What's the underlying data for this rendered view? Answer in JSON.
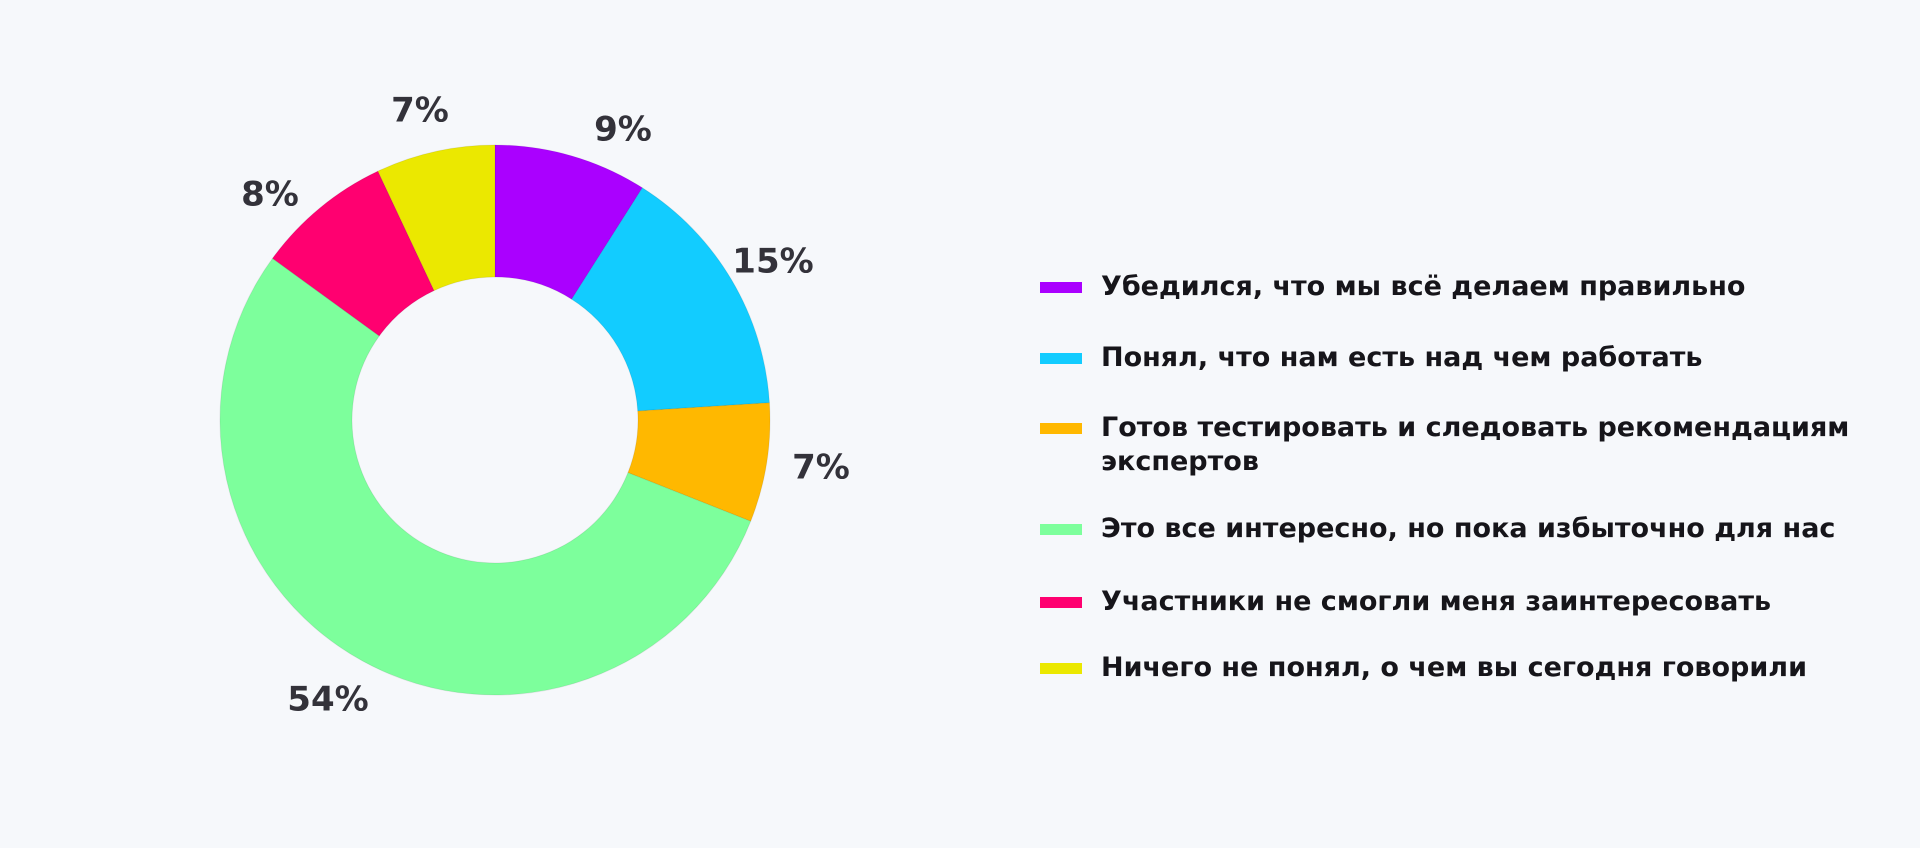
{
  "chart_data": {
    "type": "pie",
    "style": "donut",
    "legend_position": "right",
    "slices": [
      {
        "label": "Убедился, что мы всё делаем правильно",
        "value": 9,
        "value_label": "9%",
        "color": "#aa00ff"
      },
      {
        "label": "Понял, что нам есть над чем работать",
        "value": 15,
        "value_label": "15%",
        "color": "#12ccff"
      },
      {
        "label": "Готов тестировать и следовать рекомендациям экспертов",
        "value": 7,
        "value_label": "7%",
        "color": "#ffb800"
      },
      {
        "label": "Это все интересно, но пока избыточно для нас",
        "value": 54,
        "value_label": "54%",
        "color": "#7dff9c"
      },
      {
        "label": "Участники не смогли меня заинтересовать",
        "value": 8,
        "value_label": "8%",
        "color": "#ff0070"
      },
      {
        "label": "Ничего не понял, о чем вы сегодня говорили",
        "value": 7,
        "value_label": "7%",
        "color": "#ebe800"
      }
    ]
  }
}
